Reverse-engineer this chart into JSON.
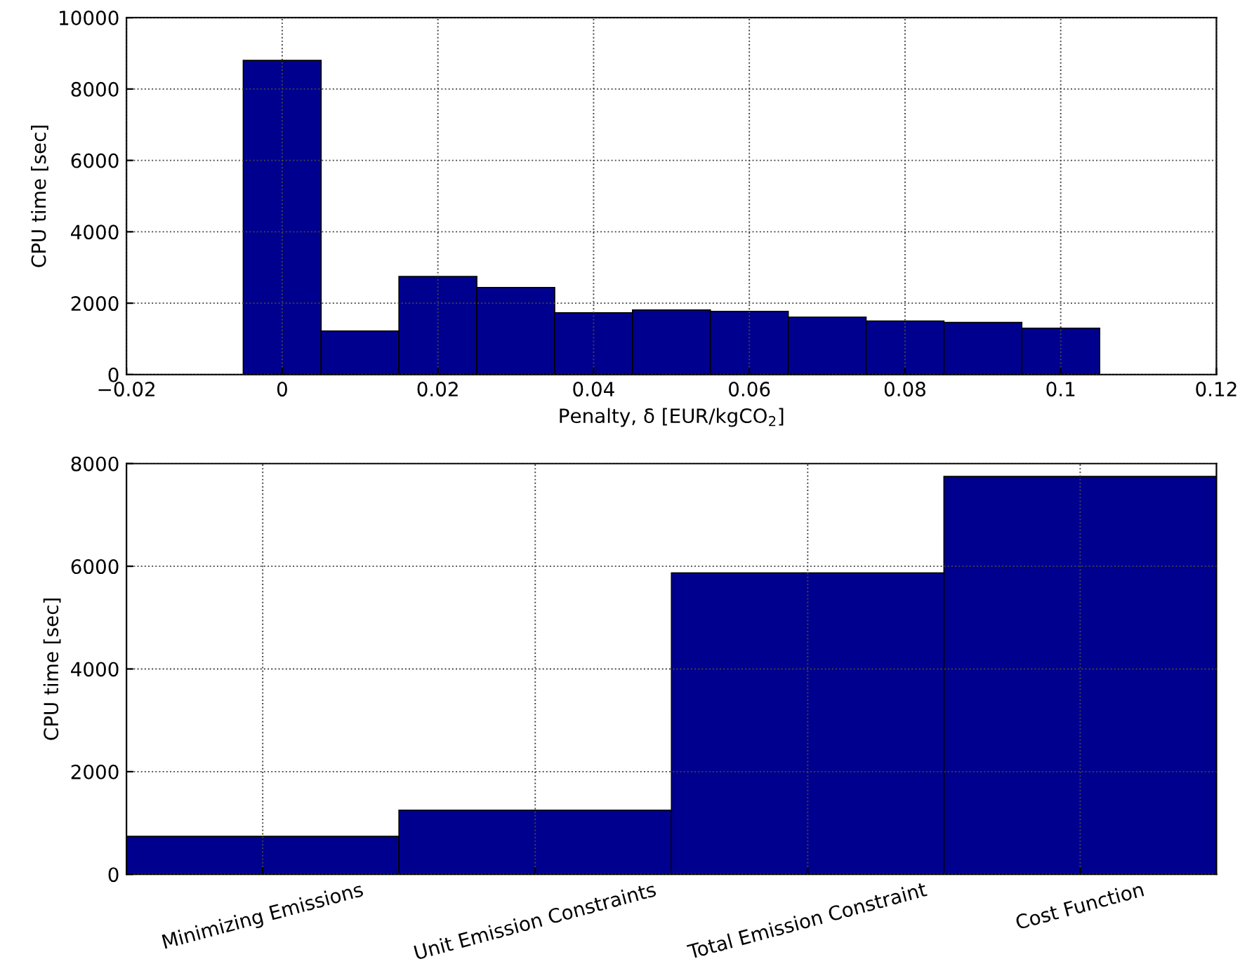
{
  "chart_data": [
    {
      "type": "histogram",
      "xlabel": "Penalty, δ [EUR/kgCO$_{2}$]",
      "ylabel": "CPU time [sec]",
      "color": "#00008f",
      "bins": [
        -0.005,
        0.005,
        0.015,
        0.025,
        0.035,
        0.045,
        0.055,
        0.065,
        0.075,
        0.085,
        0.095,
        0.105
      ],
      "values": [
        8800,
        1220,
        2750,
        2440,
        1730,
        1810,
        1770,
        1610,
        1500,
        1460,
        1300
      ],
      "xlim": [
        -0.02,
        0.12
      ],
      "xticks": [
        {
          "value": -0.02,
          "label": "−0.02"
        },
        0,
        0.02,
        0.04,
        0.06,
        0.08,
        0.1,
        0.12
      ],
      "ylim": [
        0,
        10000
      ],
      "yticks": [
        0,
        2000,
        4000,
        6000,
        8000,
        10000
      ],
      "grid": true
    },
    {
      "type": "bar",
      "ylabel": "CPU time [sec]",
      "color": "#00008f",
      "categories": [
        "Minimizing Emissions",
        "Unit Emission Constraints",
        "Total Emission Constraint",
        "Cost Function"
      ],
      "values": [
        740,
        1250,
        5870,
        7750
      ],
      "ylim": [
        0,
        8000
      ],
      "yticks": [
        0,
        2000,
        4000,
        6000,
        8000
      ],
      "grid": true
    }
  ]
}
